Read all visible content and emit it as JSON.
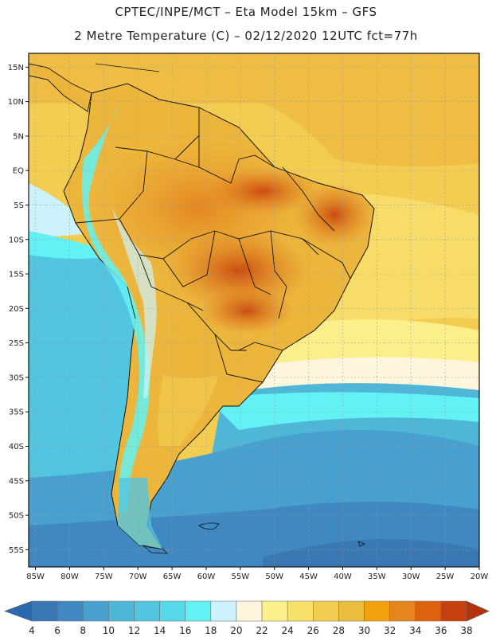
{
  "header": {
    "line1": "CPTEC/INPE/MCT –  Eta Model 15km – GFS",
    "line2": "2 Metre Temperature (C) – 02/12/2020 12UTC fct=77h"
  },
  "axes": {
    "lat_labels": [
      "15N",
      "10N",
      "5N",
      "EQ",
      "5S",
      "10S",
      "15S",
      "20S",
      "25S",
      "30S",
      "35S",
      "40S",
      "45S",
      "50S",
      "55S"
    ],
    "lat_values": [
      15,
      10,
      5,
      0,
      -5,
      -10,
      -15,
      -20,
      -25,
      -30,
      -35,
      -40,
      -45,
      -50,
      -55
    ],
    "lon_labels": [
      "85W",
      "80W",
      "75W",
      "70W",
      "65W",
      "60W",
      "55W",
      "50W",
      "45W",
      "40W",
      "35W",
      "30W",
      "25W",
      "20W"
    ],
    "lon_values": [
      -85,
      -80,
      -75,
      -70,
      -65,
      -60,
      -55,
      -50,
      -45,
      -40,
      -35,
      -30,
      -25,
      -20
    ],
    "lat_range": [
      -57.5,
      17.0
    ],
    "lon_range": [
      -86.0,
      -20.0
    ]
  },
  "colorbar": {
    "ticks": [
      "4",
      "6",
      "8",
      "10",
      "12",
      "14",
      "16",
      "18",
      "20",
      "22",
      "24",
      "26",
      "28",
      "30",
      "32",
      "34",
      "36",
      "38"
    ],
    "colors": [
      "#3a78b4",
      "#3f88c2",
      "#47a0ce",
      "#4fb6d8",
      "#52c6e0",
      "#55d8e8",
      "#63f2f4",
      "#ccf3fb",
      "#fdf5dc",
      "#fbf089",
      "#f9e169",
      "#f3cc52",
      "#ecbc3c",
      "#f0a10c",
      "#e7841c",
      "#dd6210",
      "#c84010"
    ],
    "low_end_color": "#2a69b0",
    "high_end_color": "#b3330c"
  }
}
